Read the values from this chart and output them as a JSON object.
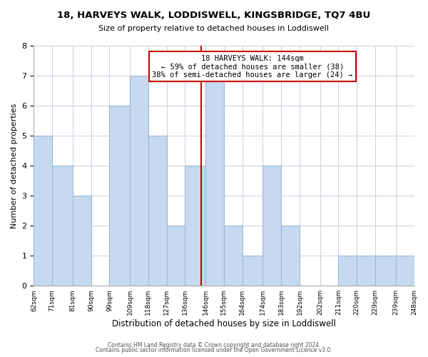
{
  "title": "18, HARVEYS WALK, LODDISWELL, KINGSBRIDGE, TQ7 4BU",
  "subtitle": "Size of property relative to detached houses in Loddiswell",
  "xlabel": "Distribution of detached houses by size in Loddiswell",
  "ylabel": "Number of detached properties",
  "footer1": "Contains HM Land Registry data © Crown copyright and database right 2024.",
  "footer2": "Contains public sector information licensed under the Open Government Licence v3.0.",
  "bin_labels": [
    "62sqm",
    "71sqm",
    "81sqm",
    "90sqm",
    "99sqm",
    "109sqm",
    "118sqm",
    "127sqm",
    "136sqm",
    "146sqm",
    "155sqm",
    "164sqm",
    "174sqm",
    "183sqm",
    "192sqm",
    "202sqm",
    "211sqm",
    "220sqm",
    "229sqm",
    "239sqm",
    "248sqm"
  ],
  "bin_edges": [
    62,
    71,
    81,
    90,
    99,
    109,
    118,
    127,
    136,
    146,
    155,
    164,
    174,
    183,
    192,
    202,
    211,
    220,
    229,
    239,
    248
  ],
  "bar_heights": [
    5,
    4,
    3,
    0,
    6,
    7,
    5,
    2,
    4,
    7,
    2,
    1,
    4,
    2,
    0,
    0,
    1,
    1,
    1,
    1
  ],
  "bar_color": "#c6d9ee",
  "bar_edge_color": "#9ab8d8",
  "property_size": 144,
  "vline_color": "#cc0000",
  "annotation_text": "18 HARVEYS WALK: 144sqm\n← 59% of detached houses are smaller (38)\n38% of semi-detached houses are larger (24) →",
  "annotation_box_color": "#ffffff",
  "annotation_border_color": "#cc0000",
  "ylim": [
    0,
    8
  ],
  "yticks": [
    0,
    1,
    2,
    3,
    4,
    5,
    6,
    7,
    8
  ],
  "background_color": "#ffffff",
  "grid_color": "#c8cfe0"
}
